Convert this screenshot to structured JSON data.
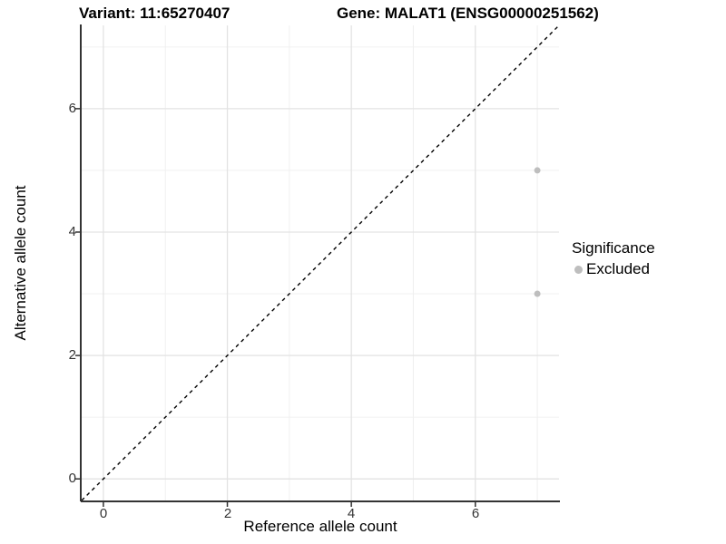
{
  "titles": {
    "variant": "Variant: 11:65270407",
    "gene": "Gene: MALAT1 (ENSG00000251562)"
  },
  "axes": {
    "x": {
      "label": "Reference allele count",
      "ticks": [
        "0",
        "2",
        "4",
        "6"
      ]
    },
    "y": {
      "label": "Alternative allele count",
      "ticks": [
        "0",
        "2",
        "4",
        "6"
      ]
    }
  },
  "legend": {
    "title": "Significance",
    "items": [
      {
        "label": "Excluded",
        "color": "#bebebe"
      }
    ]
  },
  "colors": {
    "background": "#ffffff",
    "grid_major": "#e3e3e3",
    "grid_minor": "#f0f0f0",
    "axis_line": "#333333",
    "tick_mark": "#333333",
    "tick_label": "#333333",
    "identity_line": "#000000",
    "point": "#bebebe"
  },
  "chart_data": {
    "type": "scatter",
    "title": "Variant: 11:65270407 / Gene: MALAT1 (ENSG00000251562)",
    "xlabel": "Reference allele count",
    "ylabel": "Alternative allele count",
    "xlim": [
      -0.35,
      7.35
    ],
    "ylim": [
      -0.35,
      7.35
    ],
    "x_major_ticks": [
      0,
      2,
      4,
      6
    ],
    "y_major_ticks": [
      0,
      2,
      4,
      6
    ],
    "x_minor_ticks": [
      1,
      3,
      5,
      7
    ],
    "y_minor_ticks": [
      1,
      3,
      5,
      7
    ],
    "grid": "major+minor",
    "legend_position": "right",
    "legend_title": "Significance",
    "reference_line": {
      "type": "identity y=x",
      "style": "dashed",
      "color": "#000000"
    },
    "series": [
      {
        "name": "Excluded",
        "color": "#bebebe",
        "points": [
          [
            7,
            5
          ],
          [
            7,
            3
          ]
        ]
      }
    ]
  }
}
